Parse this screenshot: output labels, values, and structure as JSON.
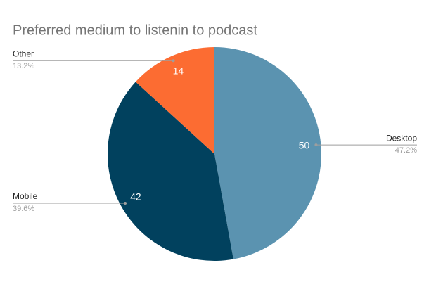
{
  "chart_data": {
    "type": "pie",
    "title": "Preferred medium to listenin to podcast",
    "categories": [
      "Desktop",
      "Mobile",
      "Other"
    ],
    "values": [
      50,
      42,
      14
    ],
    "percent_labels": [
      "47.2%",
      "39.6%",
      "13.2%"
    ],
    "colors": [
      "#5b93b0",
      "#01415e",
      "#fc6c32"
    ]
  }
}
